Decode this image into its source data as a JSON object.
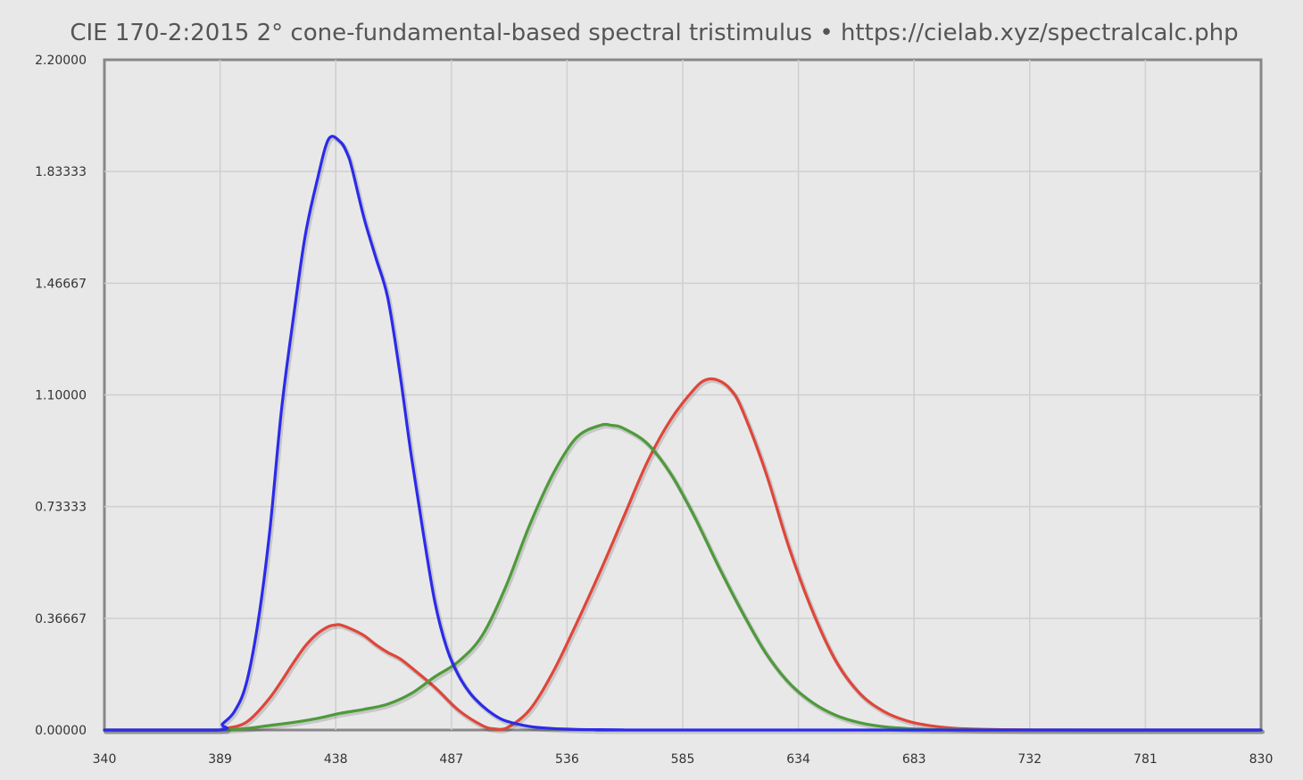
{
  "chart_data": {
    "type": "line",
    "title": "CIE 170-2:2015 2° cone-fundamental-based spectral tristimulus  •  https://cielab.xyz/spectralcalc.php",
    "xlabel": "",
    "ylabel": "",
    "xlim": [
      340,
      830
    ],
    "ylim": [
      0,
      2.2
    ],
    "grid": true,
    "x_ticks": [
      "340",
      "389",
      "438",
      "487",
      "536",
      "585",
      "634",
      "683",
      "732",
      "781",
      "830"
    ],
    "y_ticks": [
      "0.00000",
      "0.36667",
      "0.73333",
      "1.10000",
      "1.46667",
      "1.83333",
      "2.20000"
    ],
    "colors": {
      "x_bar": "#e0463a",
      "y_bar": "#4e9a3a",
      "z_bar": "#2b2bea"
    },
    "series": [
      {
        "key": "x_bar",
        "x": [
          340,
          388,
          390,
          400,
          410,
          420,
          425,
          430,
          435,
          438,
          440,
          445,
          450,
          455,
          460,
          465,
          470,
          480,
          490,
          500,
          505,
          510,
          520,
          530,
          540,
          550,
          560,
          570,
          580,
          590,
          595,
          600,
          605,
          610,
          620,
          630,
          640,
          650,
          660,
          670,
          680,
          690,
          700,
          710,
          720,
          740,
          760,
          780,
          830
        ],
        "values": [
          0,
          0,
          0.0037,
          0.025,
          0.105,
          0.22,
          0.275,
          0.315,
          0.34,
          0.345,
          0.345,
          0.33,
          0.31,
          0.28,
          0.255,
          0.235,
          0.205,
          0.14,
          0.065,
          0.015,
          0.004,
          0.005,
          0.065,
          0.19,
          0.35,
          0.52,
          0.7,
          0.88,
          1.02,
          1.12,
          1.15,
          1.148,
          1.12,
          1.055,
          0.85,
          0.6,
          0.39,
          0.225,
          0.12,
          0.062,
          0.03,
          0.014,
          0.006,
          0.003,
          0.0013,
          0.0003,
          0.0001,
          0,
          0
        ]
      },
      {
        "key": "y_bar",
        "x": [
          340,
          388,
          390,
          400,
          410,
          420,
          430,
          440,
          450,
          460,
          470,
          480,
          490,
          500,
          510,
          520,
          530,
          540,
          550,
          555,
          560,
          570,
          580,
          590,
          600,
          610,
          620,
          630,
          640,
          650,
          660,
          670,
          680,
          690,
          700,
          720,
          740,
          780,
          830
        ],
        "values": [
          0,
          0,
          0.0004,
          0.005,
          0.015,
          0.025,
          0.038,
          0.055,
          0.068,
          0.085,
          0.12,
          0.175,
          0.225,
          0.31,
          0.47,
          0.67,
          0.84,
          0.96,
          1.0,
          1.0,
          0.99,
          0.94,
          0.84,
          0.7,
          0.54,
          0.39,
          0.255,
          0.155,
          0.09,
          0.048,
          0.024,
          0.011,
          0.005,
          0.002,
          0.001,
          0.0002,
          0.0001,
          0,
          0
        ]
      },
      {
        "key": "z_bar",
        "x": [
          340,
          388,
          390,
          395,
          400,
          405,
          410,
          415,
          420,
          425,
          430,
          435,
          440,
          443,
          445,
          450,
          455,
          460,
          465,
          470,
          475,
          480,
          485,
          490,
          495,
          500,
          505,
          510,
          520,
          530,
          540,
          550,
          560,
          570,
          830
        ],
        "values": [
          0,
          0,
          0.02,
          0.06,
          0.15,
          0.35,
          0.65,
          1.05,
          1.35,
          1.62,
          1.8,
          1.94,
          1.93,
          1.89,
          1.84,
          1.68,
          1.55,
          1.42,
          1.18,
          0.9,
          0.65,
          0.42,
          0.27,
          0.18,
          0.12,
          0.08,
          0.05,
          0.03,
          0.012,
          0.005,
          0.002,
          0.001,
          0.0003,
          0,
          0
        ]
      }
    ]
  }
}
